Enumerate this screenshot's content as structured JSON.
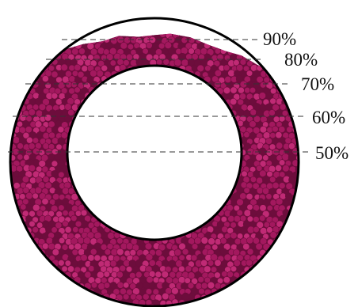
{
  "figure": {
    "granular_color": "#a3185e",
    "granular_color_dark": "#6d0d3c",
    "granular_color_light": "#c02a75",
    "outline_color": "#000000",
    "dash_color": "#333333",
    "background": "#ffffff"
  },
  "fill_levels": [
    {
      "label": "90%",
      "fraction": 0.9
    },
    {
      "label": "80%",
      "fraction": 0.8
    },
    {
      "label": "70%",
      "fraction": 0.7
    },
    {
      "label": "60%",
      "fraction": 0.6
    },
    {
      "label": "50%",
      "fraction": 0.5
    }
  ]
}
